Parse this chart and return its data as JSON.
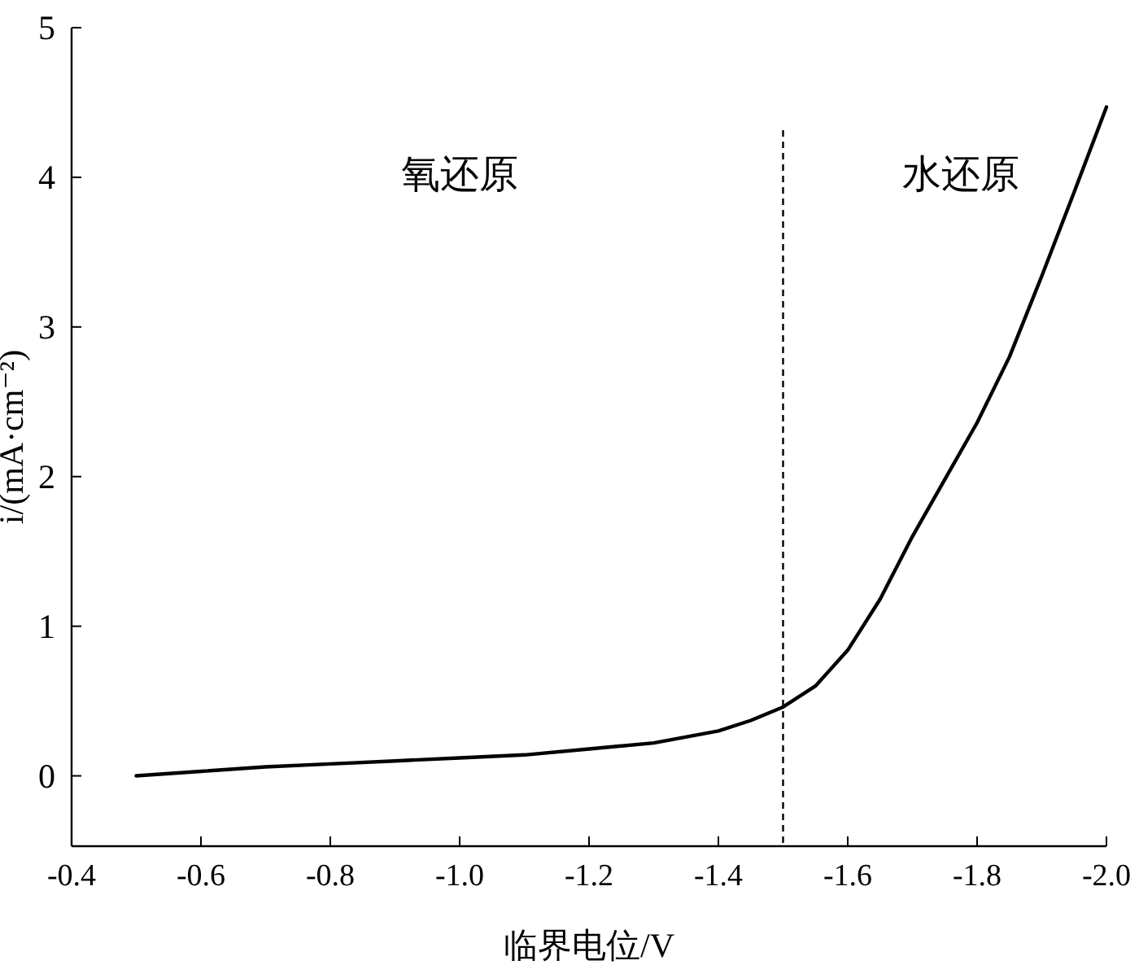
{
  "chart_data": {
    "type": "line",
    "xlabel": "临界电位/V",
    "ylabel": "i/(mA·cm⁻²)",
    "x": [
      -0.5,
      -0.6,
      -0.7,
      -0.8,
      -0.9,
      -1.0,
      -1.1,
      -1.2,
      -1.3,
      -1.4,
      -1.45,
      -1.5,
      -1.55,
      -1.6,
      -1.65,
      -1.7,
      -1.75,
      -1.8,
      -1.85,
      -1.9,
      -1.95,
      -2.0
    ],
    "series": [
      {
        "color": "#000000",
        "values": [
          0.0,
          0.03,
          0.06,
          0.08,
          0.1,
          0.12,
          0.14,
          0.18,
          0.22,
          0.3,
          0.37,
          0.46,
          0.6,
          0.84,
          1.18,
          1.6,
          1.98,
          2.36,
          2.8,
          3.34,
          3.9,
          4.47
        ]
      }
    ],
    "xlim": [
      -0.4,
      -2.0
    ],
    "xticks": [
      {
        "value": -0.4,
        "label": "-0.4"
      },
      {
        "value": -0.6,
        "label": "-0.6"
      },
      {
        "value": -0.8,
        "label": "-0.8"
      },
      {
        "value": -1.0,
        "label": "-1.0"
      },
      {
        "value": -1.2,
        "label": "-1.2"
      },
      {
        "value": -1.4,
        "label": "-1.4"
      },
      {
        "value": -1.6,
        "label": "-1.6"
      },
      {
        "value": -1.8,
        "label": "-1.8"
      },
      {
        "value": -2.0,
        "label": "-2.0"
      }
    ],
    "ylim": [
      -0.47,
      5
    ],
    "yticks": [
      0,
      1,
      2,
      3,
      4,
      5
    ],
    "ref_lines": [
      {
        "axis": "x",
        "value": -1.5,
        "line_style": "dashed",
        "color": "#000000"
      }
    ],
    "annotations": [
      "氧还原",
      "水还原"
    ],
    "line_style": "solid",
    "marker": "none"
  }
}
